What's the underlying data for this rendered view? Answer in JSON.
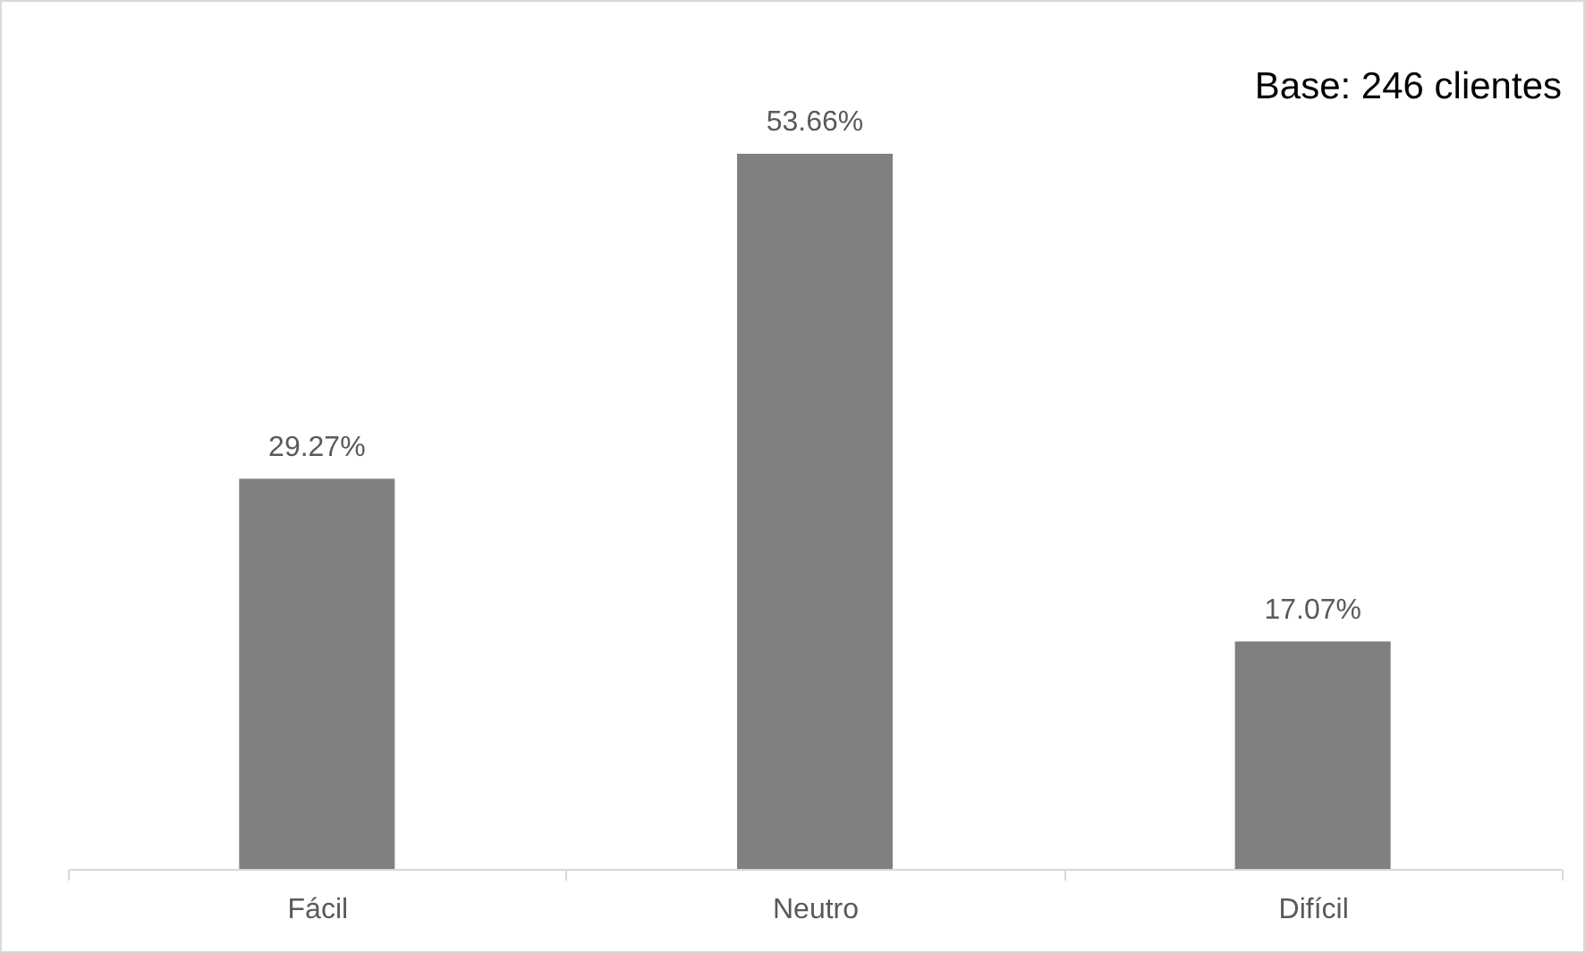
{
  "chart_data": {
    "type": "bar",
    "categories": [
      "Fácil",
      "Neutro",
      "Difícil"
    ],
    "values": [
      29.27,
      53.66,
      17.07
    ],
    "color": "#808080",
    "value_labels": [
      "29.27%",
      "53.66%",
      "17.07%"
    ],
    "annotations": [
      "Base: 246 clientes"
    ]
  }
}
